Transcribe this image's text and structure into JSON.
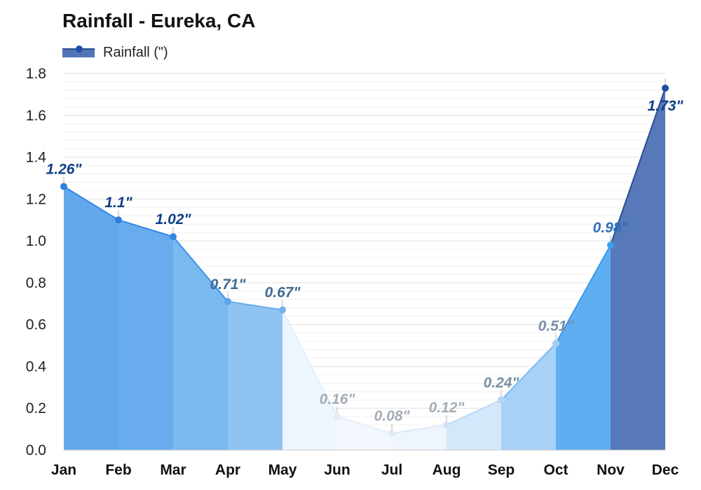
{
  "chart_data": {
    "type": "area",
    "title": "Rainfall - Eureka, CA",
    "categories": [
      "Jan",
      "Feb",
      "Mar",
      "Apr",
      "May",
      "Jun",
      "Jul",
      "Aug",
      "Sep",
      "Oct",
      "Nov",
      "Dec"
    ],
    "series": [
      {
        "name": "Rainfall (\")",
        "values": [
          1.26,
          1.1,
          1.02,
          0.71,
          0.67,
          0.16,
          0.08,
          0.12,
          0.24,
          0.51,
          0.98,
          1.73
        ]
      }
    ],
    "data_labels": [
      "1.26\"",
      "1.1\"",
      "1.02\"",
      "0.71\"",
      "0.67\"",
      "0.16\"",
      "0.08\"",
      "0.12\"",
      "0.24\"",
      "0.51\"",
      "0.98\"",
      "1.73\""
    ],
    "y_ticks": [
      "0.0",
      "0.2",
      "0.4",
      "0.6",
      "0.8",
      "1.0",
      "1.2",
      "1.4",
      "1.6",
      "1.8"
    ],
    "ylim": [
      0,
      1.8
    ],
    "xlabel": "",
    "ylabel": "",
    "grid": true,
    "legend": "top-left"
  },
  "colors": {
    "legend_fill": "#4f76b8",
    "legend_line": "#2b4a8a",
    "legend_dot": "#1e4fa8",
    "grid": "#e4e4e4",
    "axis": "#cccccc",
    "segment_fills": [
      "#63a7ec",
      "#68acee",
      "#7ab8f0",
      "#8ec3f2",
      "#edf5fd",
      "#f3f8fe",
      "#eef5fd",
      "#d4e8fb",
      "#a8d1f7",
      "#5eaff2",
      "#5779b9"
    ],
    "line_colors": [
      "#3389e6",
      "#3389e6",
      "#3b92e8",
      "#6aa9ec",
      "#e2effb",
      "#e6effb",
      "#dbeafb",
      "#bcd9f6",
      "#7ab9ef",
      "#3a98ea",
      "#2a4d8e"
    ],
    "point_colors": [
      "#2f7fd8",
      "#2f7fd8",
      "#2f87e0",
      "#5ea6ea",
      "#74b0ea",
      "#e3eefb",
      "#e0ebf8",
      "#cfe3f7",
      "#b7d5f3",
      "#a6cdf2",
      "#3aa0ee",
      "#1e4fa8"
    ],
    "label_colors": [
      "#0f3f85",
      "#0f3f85",
      "#0f3f85",
      "#3f6a93",
      "#3f6a93",
      "#a3acb6",
      "#a3acb6",
      "#a3acb6",
      "#7a8fa6",
      "#7a8fa6",
      "#2f6fbf",
      "#0f3f85"
    ]
  }
}
